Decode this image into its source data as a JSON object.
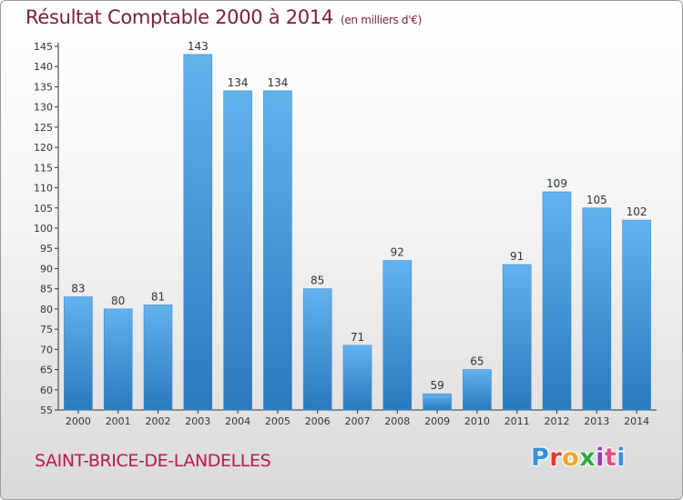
{
  "title": "Résultat Comptable 2000 à 2014",
  "subtitle": "(en milliers d'€)",
  "commune": "SAINT-BRICE-DE-LANDELLES",
  "logo": {
    "letters": [
      "P",
      "r",
      "o",
      "x",
      "i",
      "t",
      "i"
    ],
    "colors": [
      "#3a8fd8",
      "#e03a2e",
      "#f2a623",
      "#2eaa3c",
      "#9a3bb3",
      "#e84a8b",
      "#3a8fd8"
    ]
  },
  "colors": {
    "bar": "#3f95d8",
    "bar_light": "#62b2ee",
    "bar_dark": "#2a79be",
    "title": "#7a1f3a",
    "commune": "#b8194f"
  },
  "chart_data": {
    "type": "bar",
    "title": "Résultat Comptable 2000 à 2014",
    "subtitle": "(en milliers d'€)",
    "categories": [
      "2000",
      "2001",
      "2002",
      "2003",
      "2004",
      "2005",
      "2006",
      "2007",
      "2008",
      "2009",
      "2010",
      "2011",
      "2012",
      "2013",
      "2014"
    ],
    "values": [
      83,
      80,
      81,
      143,
      134,
      134,
      85,
      71,
      92,
      59,
      65,
      91,
      109,
      105,
      102
    ],
    "ylim": [
      55,
      145
    ],
    "yticks": [
      55,
      60,
      65,
      70,
      75,
      80,
      85,
      90,
      95,
      100,
      105,
      110,
      115,
      120,
      125,
      130,
      135,
      140,
      145
    ],
    "grid": false,
    "data_labels": true
  }
}
